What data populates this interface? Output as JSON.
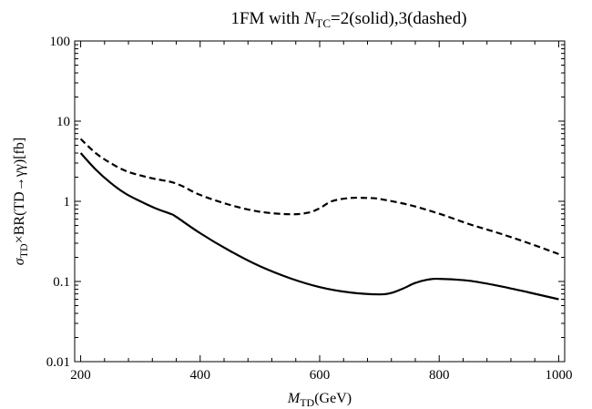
{
  "chart_data": {
    "type": "line",
    "title": {
      "prefix": "1FM with ",
      "n_main": "N",
      "n_sub": "TC",
      "suffix": "=2(solid),3(dashed)"
    },
    "xlabel": {
      "main": "M",
      "sub": "TD",
      "suffix": "(GeV)"
    },
    "ylabel": {
      "sigma": "σ",
      "sigma_sub": "TD",
      "rest": "×BR(TD→γγ)[fb]"
    },
    "x_scale": "linear",
    "y_scale": "log",
    "xlim": [
      190,
      1010
    ],
    "ylim": [
      0.01,
      100
    ],
    "x_ticks": [
      200,
      400,
      600,
      800,
      1000
    ],
    "x_tick_labels": [
      "200",
      "400",
      "600",
      "800",
      "1000"
    ],
    "y_ticks": [
      0.01,
      0.1,
      1,
      10,
      100
    ],
    "y_tick_labels": [
      "0.01",
      "0.1",
      "1",
      "10",
      "100"
    ],
    "grid": false,
    "series": [
      {
        "style": "solid",
        "x": [
          200,
          225,
          250,
          275,
          300,
          325,
          350,
          360,
          400,
          450,
          500,
          550,
          600,
          650,
          700,
          720,
          740,
          760,
          780,
          800,
          850,
          900,
          950,
          1000
        ],
        "y": [
          4.0,
          2.5,
          1.7,
          1.25,
          1.0,
          0.82,
          0.7,
          0.64,
          0.4,
          0.24,
          0.155,
          0.11,
          0.085,
          0.073,
          0.069,
          0.072,
          0.082,
          0.096,
          0.105,
          0.108,
          0.102,
          0.088,
          0.073,
          0.06
        ]
      },
      {
        "style": "dashed",
        "x": [
          200,
          225,
          250,
          275,
          300,
          325,
          350,
          370,
          400,
          450,
          500,
          550,
          580,
          600,
          620,
          650,
          680,
          700,
          750,
          800,
          850,
          900,
          950,
          1000
        ],
        "y": [
          6.0,
          4.0,
          3.0,
          2.4,
          2.1,
          1.9,
          1.75,
          1.55,
          1.2,
          0.9,
          0.74,
          0.69,
          0.72,
          0.82,
          1.0,
          1.1,
          1.1,
          1.07,
          0.9,
          0.7,
          0.52,
          0.4,
          0.3,
          0.22
        ]
      }
    ]
  }
}
